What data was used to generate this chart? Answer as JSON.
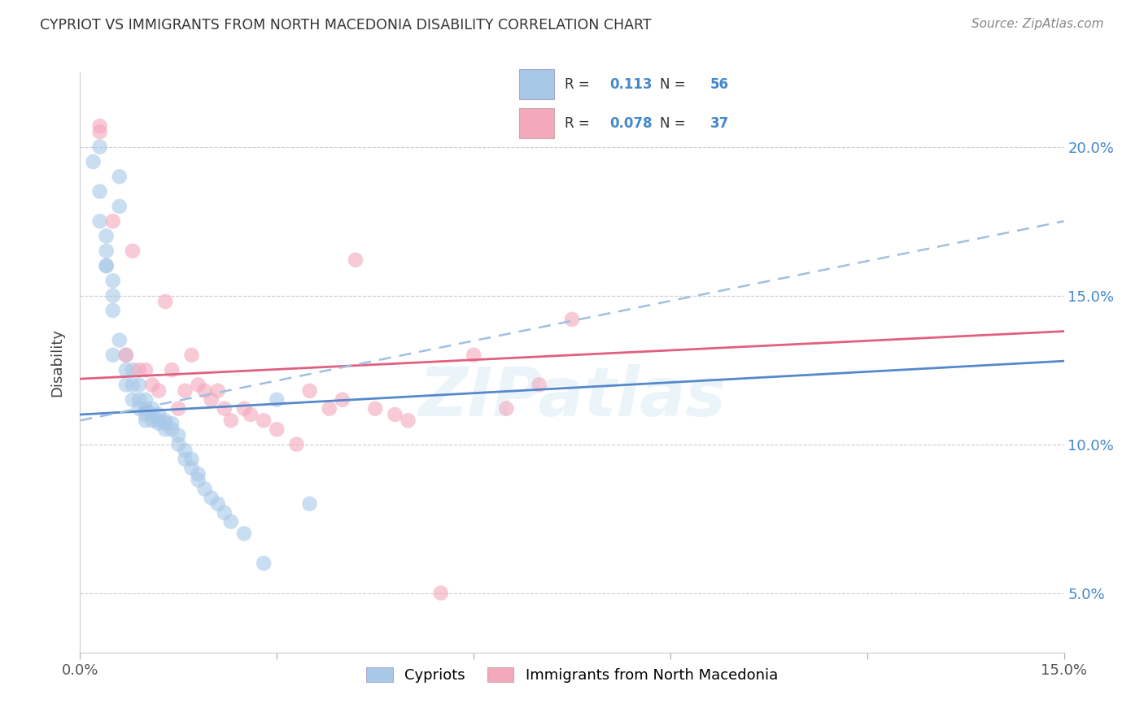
{
  "title": "CYPRIOT VS IMMIGRANTS FROM NORTH MACEDONIA DISABILITY CORRELATION CHART",
  "source": "Source: ZipAtlas.com",
  "ylabel": "Disability",
  "y_ticks_right": [
    0.05,
    0.1,
    0.15,
    0.2
  ],
  "y_tick_labels_right": [
    "5.0%",
    "10.0%",
    "15.0%",
    "20.0%"
  ],
  "xlim": [
    0.0,
    0.15
  ],
  "ylim": [
    0.03,
    0.225
  ],
  "watermark": "ZIPatlas",
  "legend_R1": "0.113",
  "legend_N1": "56",
  "legend_R2": "0.078",
  "legend_N2": "37",
  "color_blue": "#A8C8E8",
  "color_pink": "#F4A8BC",
  "line_color_blue": "#5588CC",
  "line_color_pink": "#E06080",
  "dashed_line_color": "#A0C0E0",
  "cypriot_x": [
    0.002,
    0.003,
    0.003,
    0.004,
    0.004,
    0.005,
    0.005,
    0.005,
    0.006,
    0.006,
    0.006,
    0.007,
    0.007,
    0.007,
    0.008,
    0.008,
    0.008,
    0.009,
    0.009,
    0.009,
    0.01,
    0.01,
    0.01,
    0.01,
    0.011,
    0.011,
    0.011,
    0.012,
    0.012,
    0.012,
    0.013,
    0.013,
    0.013,
    0.014,
    0.014,
    0.015,
    0.015,
    0.016,
    0.016,
    0.017,
    0.017,
    0.018,
    0.018,
    0.019,
    0.02,
    0.021,
    0.022,
    0.023,
    0.025,
    0.028,
    0.003,
    0.004,
    0.004,
    0.005,
    0.03,
    0.035
  ],
  "cypriot_y": [
    0.195,
    0.185,
    0.175,
    0.17,
    0.16,
    0.155,
    0.145,
    0.13,
    0.19,
    0.18,
    0.135,
    0.13,
    0.125,
    0.12,
    0.125,
    0.12,
    0.115,
    0.12,
    0.115,
    0.112,
    0.115,
    0.112,
    0.11,
    0.108,
    0.112,
    0.11,
    0.108,
    0.11,
    0.108,
    0.107,
    0.108,
    0.107,
    0.105,
    0.107,
    0.105,
    0.103,
    0.1,
    0.098,
    0.095,
    0.095,
    0.092,
    0.09,
    0.088,
    0.085,
    0.082,
    0.08,
    0.077,
    0.074,
    0.07,
    0.06,
    0.2,
    0.165,
    0.16,
    0.15,
    0.115,
    0.08
  ],
  "macedonia_x": [
    0.003,
    0.003,
    0.005,
    0.007,
    0.008,
    0.009,
    0.01,
    0.011,
    0.012,
    0.013,
    0.014,
    0.015,
    0.016,
    0.017,
    0.018,
    0.019,
    0.02,
    0.021,
    0.022,
    0.023,
    0.025,
    0.026,
    0.028,
    0.03,
    0.033,
    0.035,
    0.038,
    0.04,
    0.042,
    0.045,
    0.048,
    0.05,
    0.055,
    0.06,
    0.065,
    0.07,
    0.075
  ],
  "macedonia_y": [
    0.205,
    0.207,
    0.175,
    0.13,
    0.165,
    0.125,
    0.125,
    0.12,
    0.118,
    0.148,
    0.125,
    0.112,
    0.118,
    0.13,
    0.12,
    0.118,
    0.115,
    0.118,
    0.112,
    0.108,
    0.112,
    0.11,
    0.108,
    0.105,
    0.1,
    0.118,
    0.112,
    0.115,
    0.162,
    0.112,
    0.11,
    0.108,
    0.05,
    0.13,
    0.112,
    0.12,
    0.142
  ],
  "blue_line_x0": 0.0,
  "blue_line_y0": 0.11,
  "blue_line_x1": 0.15,
  "blue_line_y1": 0.128,
  "pink_line_x0": 0.0,
  "pink_line_y0": 0.122,
  "pink_line_x1": 0.15,
  "pink_line_y1": 0.138,
  "dash_line_x0": 0.0,
  "dash_line_y0": 0.108,
  "dash_line_x1": 0.15,
  "dash_line_y1": 0.175
}
